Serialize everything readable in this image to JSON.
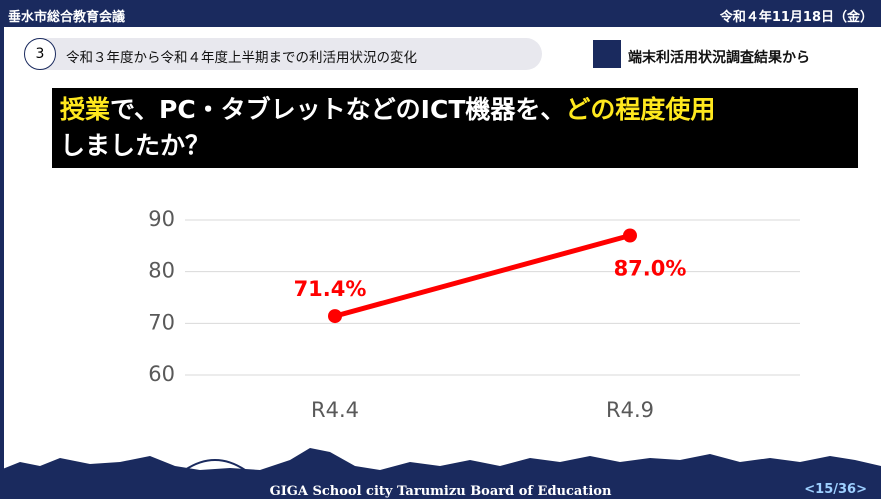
{
  "header": {
    "left": "垂水市総合教育会議",
    "right": "令和４年11月18日（金）"
  },
  "section": {
    "number": "3",
    "text": "令和３年度から令和４年度上半期までの利活用状況の変化"
  },
  "source": "端末利活用状況調査結果から",
  "question": {
    "part1": "授業",
    "part2": "で、PC・タブレットなどのICT機器を、",
    "part3": "どの程度使用",
    "part4": "しましたか？"
  },
  "footer": {
    "text": "GIGA School city Tarumizu Board of Education",
    "page": "<15/36>"
  },
  "chart_data": {
    "type": "line",
    "categories": [
      "R4.4",
      "R4.9"
    ],
    "series": [
      {
        "name": null,
        "color": "#ff0000",
        "values": [
          71.4,
          87.0
        ],
        "value_labels": [
          "71.4%",
          "87.0%"
        ]
      }
    ],
    "ylim": [
      60,
      90
    ],
    "yticks": [
      60,
      70,
      80,
      90
    ],
    "grid": true
  }
}
